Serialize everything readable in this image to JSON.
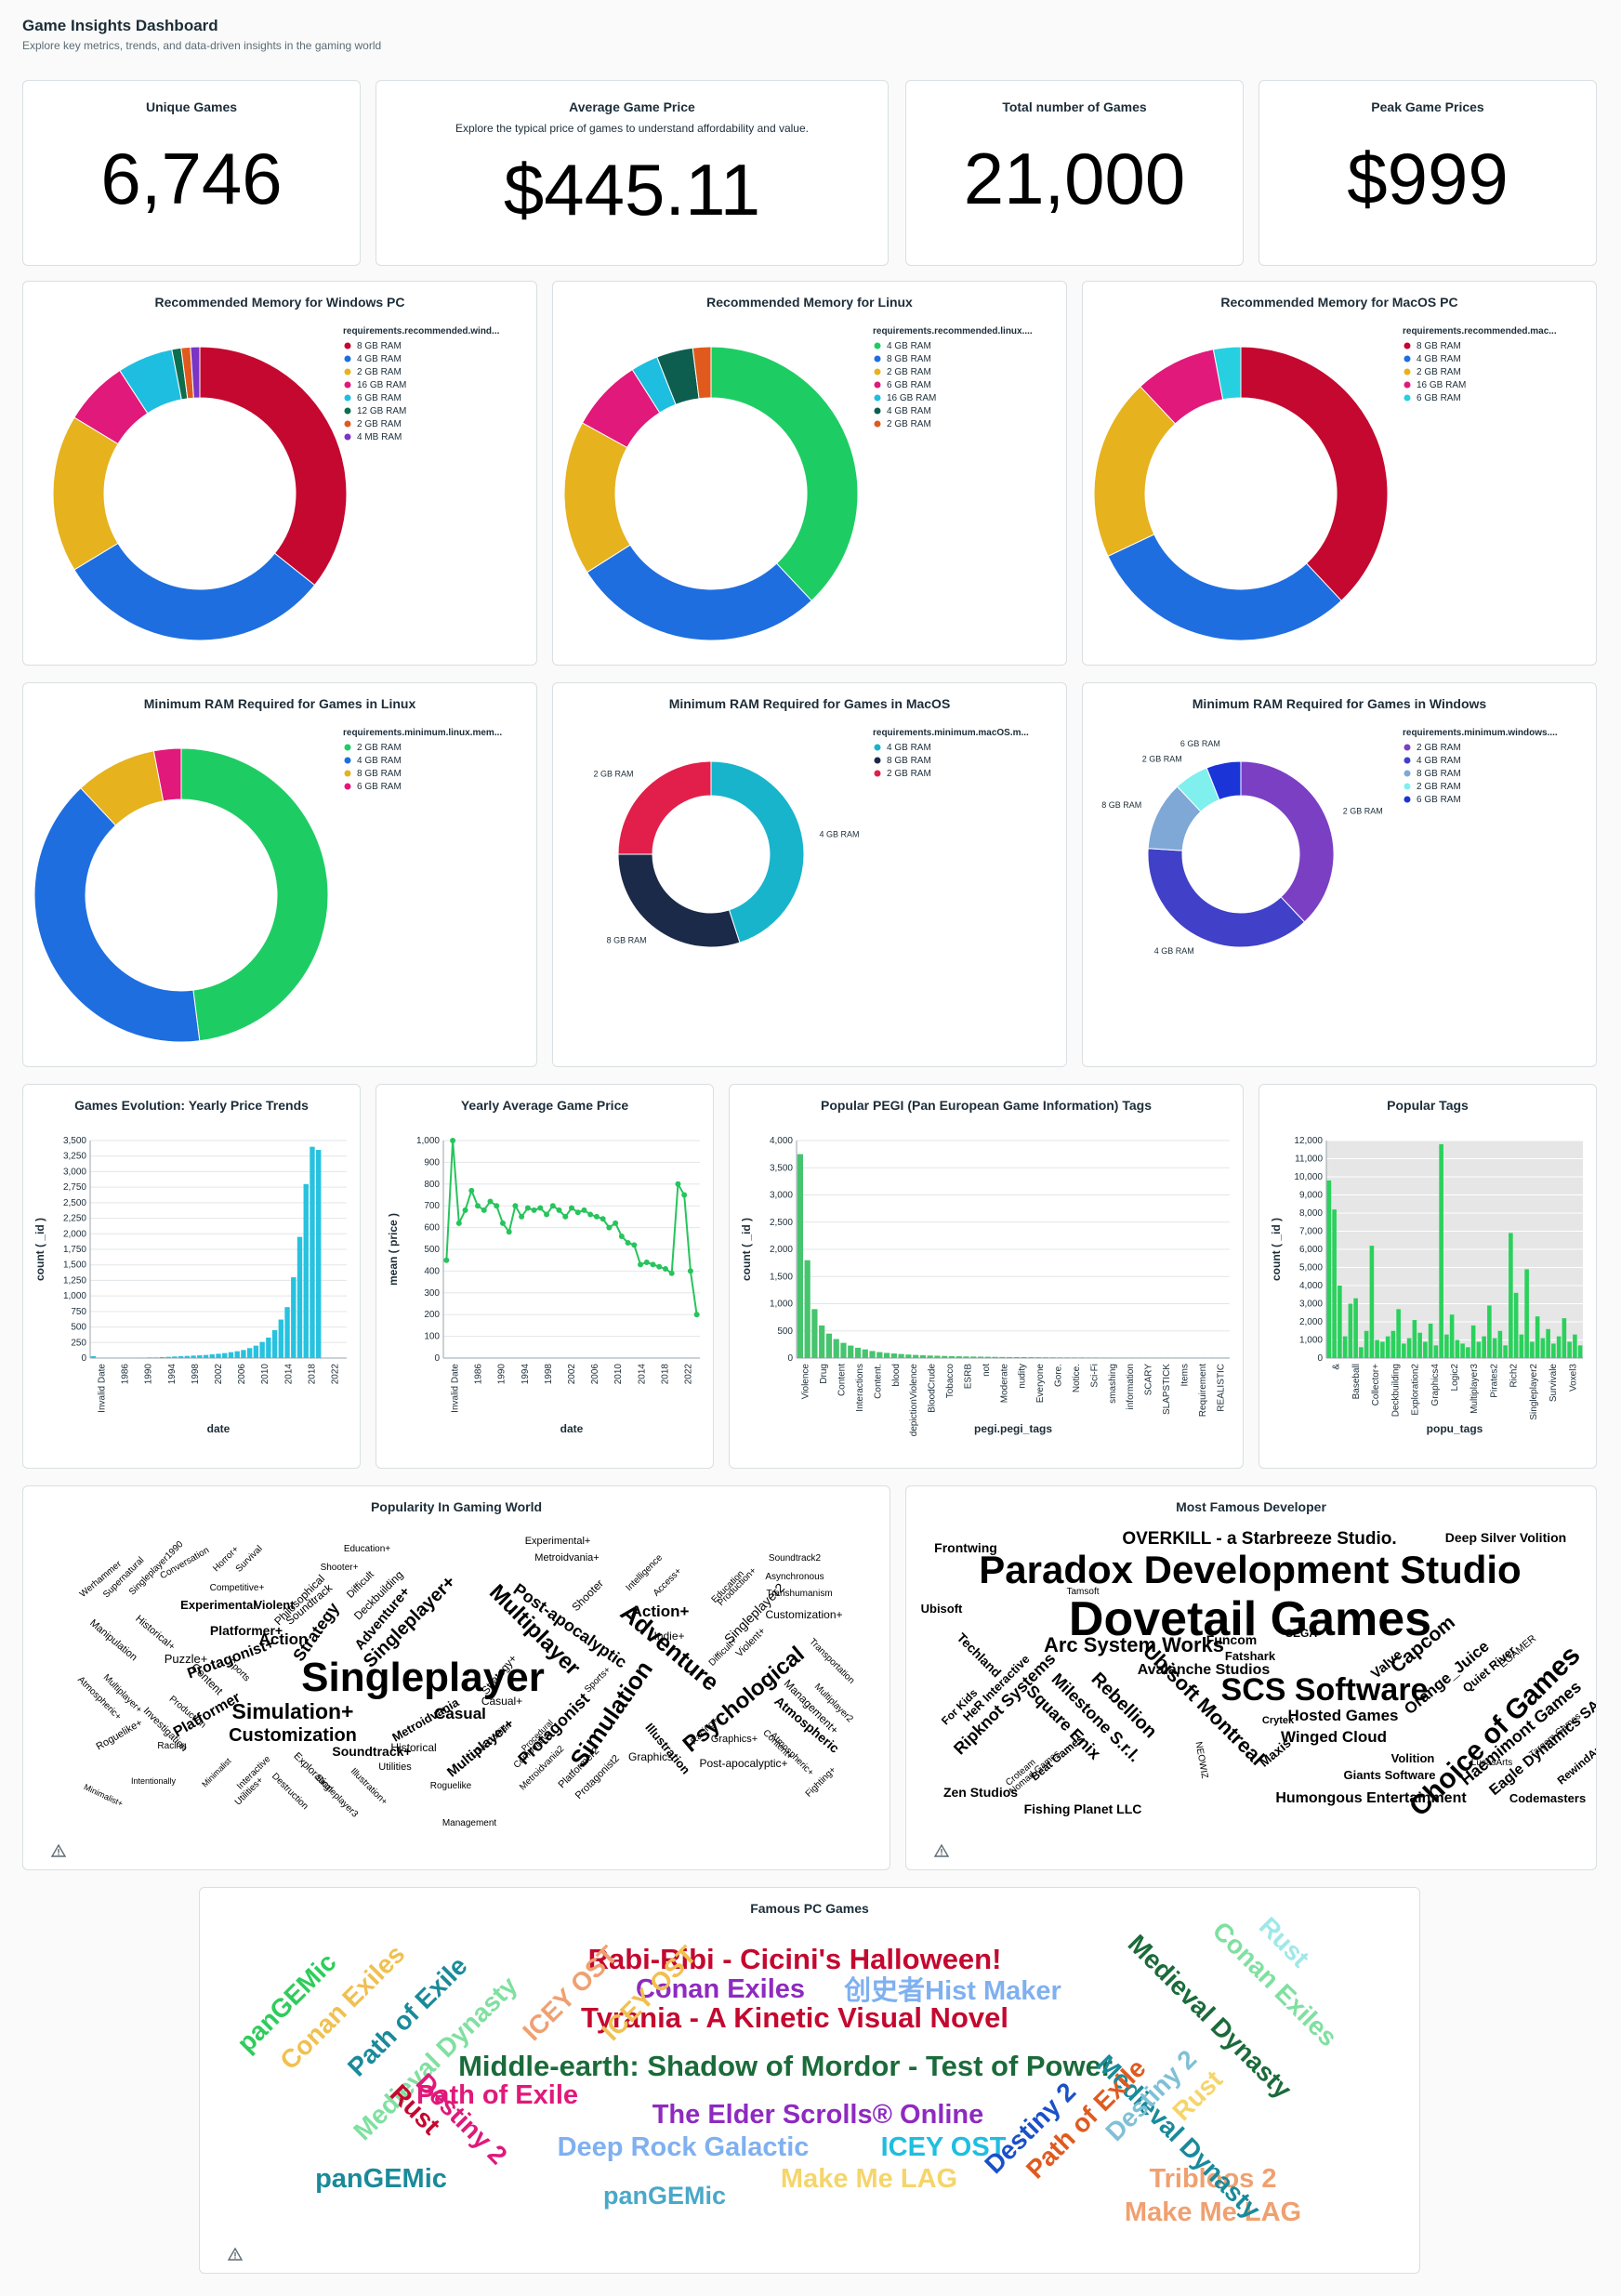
{
  "header": {
    "title": "Game Insights Dashboard",
    "subtitle": "Explore key metrics, trends, and data-driven insights in the gaming world"
  },
  "kpis": [
    {
      "title": "Unique Games",
      "subtitle": "",
      "value": "6,746"
    },
    {
      "title": "Average Game Price",
      "subtitle": "Explore the typical price of games to understand affordability and value.",
      "value": "$445.11"
    },
    {
      "title": "Total number of Games",
      "subtitle": "",
      "value": "21,000"
    },
    {
      "title": "Peak Game Prices",
      "subtitle": "",
      "value": "$999"
    }
  ],
  "chart_data": [
    {
      "id": "win_rec",
      "type": "pie",
      "donut": true,
      "title": "Recommended Memory for Windows PC",
      "legend_title": "requirements.recommended.wind...",
      "labels": [
        "8 GB RAM",
        "4 GB RAM",
        "2 GB RAM",
        "16 GB RAM",
        "6 GB RAM",
        "12 GB RAM",
        "2 GB RAM",
        "4 MB RAM"
      ],
      "values": [
        35,
        30,
        17,
        7,
        6,
        1,
        1,
        1
      ],
      "colors": [
        "#c4082f",
        "#1e6ee0",
        "#e6b21e",
        "#e0197a",
        "#1ebee0",
        "#0d6e4e",
        "#e05a1e",
        "#7a35c4"
      ]
    },
    {
      "id": "lin_rec",
      "type": "pie",
      "donut": true,
      "title": "Recommended Memory for Linux",
      "legend_title": "requirements.recommended.linux....",
      "labels": [
        "4 GB RAM",
        "8 GB RAM",
        "2 GB RAM",
        "6 GB RAM",
        "16 GB RAM",
        "4 GB RAM",
        "2 GB RAM"
      ],
      "values": [
        38,
        28,
        17,
        8,
        3,
        4,
        2
      ],
      "colors": [
        "#1ecc64",
        "#1e6ee0",
        "#e6b21e",
        "#e0197a",
        "#1ebee0",
        "#0d5e4e",
        "#e05a1e"
      ]
    },
    {
      "id": "mac_rec",
      "type": "pie",
      "donut": true,
      "title": "Recommended Memory for MacOS PC",
      "legend_title": "requirements.recommended.mac...",
      "labels": [
        "8 GB RAM",
        "4 GB RAM",
        "2 GB RAM",
        "16 GB RAM",
        "6 GB RAM"
      ],
      "values": [
        38,
        30,
        20,
        9,
        3
      ],
      "colors": [
        "#c4082f",
        "#1e6ee0",
        "#e6b21e",
        "#e0197a",
        "#27d0e0"
      ]
    },
    {
      "id": "lin_min",
      "type": "pie",
      "donut": true,
      "title": "Minimum RAM Required for Games in Linux",
      "legend_title": "requirements.minimum.linux.mem...",
      "labels": [
        "2 GB RAM",
        "4 GB RAM",
        "8 GB RAM",
        "6 GB RAM"
      ],
      "values": [
        48,
        40,
        9,
        3
      ],
      "colors": [
        "#1ecc64",
        "#1e6ee0",
        "#e6b21e",
        "#e0197a"
      ]
    },
    {
      "id": "mac_min",
      "type": "pie",
      "donut": true,
      "title": "Minimum RAM Required for Games in MacOS",
      "legend_title": "requirements.minimum.macOS.m...",
      "labels": [
        "4 GB RAM",
        "8 GB RAM",
        "2 GB RAM"
      ],
      "values": [
        45,
        30,
        25
      ],
      "colors": [
        "#18b4cc",
        "#1c2a4a",
        "#e21f4a"
      ]
    },
    {
      "id": "win_min",
      "type": "pie",
      "donut": true,
      "title": "Minimum RAM Required for Games in Windows",
      "legend_title": "requirements.minimum.windows....",
      "labels": [
        "2 GB RAM",
        "4 GB RAM",
        "8 GB RAM",
        "2 GB RAM",
        "6 GB RAM"
      ],
      "values": [
        38,
        38,
        12,
        6,
        6
      ],
      "colors": [
        "#7b3fc4",
        "#4040c8",
        "#7fa8d6",
        "#7ff0ee",
        "#1a34d8"
      ]
    },
    {
      "id": "yearly_count",
      "type": "bar",
      "title": "Games Evolution: Yearly Price Trends",
      "xlabel": "date",
      "ylabel": "count ( _id )",
      "ylim": [
        0,
        3500
      ],
      "yticks": [
        0,
        250,
        500,
        750,
        1000,
        1250,
        1500,
        1750,
        2000,
        2250,
        2500,
        2750,
        3000,
        3250,
        3500
      ],
      "xtick_labels": [
        "Invalid Date",
        "1986",
        "1990",
        "1994",
        "1998",
        "2002",
        "2006",
        "2010",
        "2014",
        "2018",
        "2022"
      ],
      "categories": [
        "Invalid Date",
        "1984",
        "1985",
        "1986",
        "1987",
        "1988",
        "1989",
        "1990",
        "1991",
        "1992",
        "1993",
        "1994",
        "1995",
        "1996",
        "1997",
        "1998",
        "1999",
        "2000",
        "2001",
        "2002",
        "2003",
        "2004",
        "2005",
        "2006",
        "2007",
        "2008",
        "2009",
        "2010",
        "2011",
        "2012",
        "2013",
        "2014",
        "2015",
        "2016",
        "2017",
        "2018",
        "2019",
        "2020",
        "2021",
        "2022",
        "2023"
      ],
      "values": [
        30,
        0,
        0,
        0,
        0,
        0,
        0,
        5,
        5,
        10,
        10,
        15,
        20,
        25,
        30,
        35,
        40,
        45,
        50,
        60,
        70,
        80,
        95,
        110,
        130,
        160,
        200,
        260,
        330,
        450,
        620,
        820,
        1300,
        1950,
        2800,
        3400,
        3350,
        0,
        0,
        0,
        0
      ],
      "color": "#27c2e0"
    },
    {
      "id": "yearly_price",
      "type": "line",
      "title": "Yearly Average Game Price",
      "xlabel": "date",
      "ylabel": "mean ( price )",
      "ylim": [
        0,
        1000
      ],
      "yticks": [
        0,
        100,
        200,
        300,
        400,
        500,
        600,
        700,
        800,
        900,
        1000
      ],
      "xtick_labels": [
        "Invalid Date",
        "1986",
        "1990",
        "1994",
        "1998",
        "2002",
        "2006",
        "2010",
        "2014",
        "2018",
        "2022"
      ],
      "x": [
        "Invalid Date",
        "1984",
        "1985",
        "1986",
        "1987",
        "1988",
        "1989",
        "1990",
        "1991",
        "1992",
        "1993",
        "1994",
        "1995",
        "1996",
        "1997",
        "1998",
        "1999",
        "2000",
        "2001",
        "2002",
        "2003",
        "2004",
        "2005",
        "2006",
        "2007",
        "2008",
        "2009",
        "2010",
        "2011",
        "2012",
        "2013",
        "2014",
        "2015",
        "2016",
        "2017",
        "2018",
        "2019",
        "2020",
        "2021",
        "2022",
        "2023"
      ],
      "values": [
        450,
        1000,
        620,
        680,
        770,
        700,
        680,
        720,
        700,
        620,
        580,
        700,
        650,
        690,
        680,
        690,
        660,
        700,
        680,
        650,
        690,
        670,
        680,
        660,
        650,
        640,
        600,
        620,
        560,
        530,
        520,
        430,
        440,
        430,
        420,
        410,
        390,
        800,
        750,
        400,
        200
      ],
      "color": "#27c45c"
    },
    {
      "id": "pegi_tags",
      "type": "bar",
      "title": "Popular PEGI (Pan European Game Information) Tags",
      "xlabel": "pegi.pegi_tags",
      "ylabel": "count ( _id )",
      "ylim": [
        0,
        4000
      ],
      "yticks": [
        0,
        500,
        1000,
        1500,
        2000,
        2500,
        3000,
        3500,
        4000
      ],
      "xtick_labels": [
        "Violence",
        "Drug",
        "Content",
        "Interactions",
        "Content.",
        "blood",
        "depictionViolence",
        "BloodCrude",
        "Tobacco",
        "ESRB",
        "not",
        "Moderate",
        "nudity",
        "Everyone",
        "Gore.",
        "Notice.",
        "Sci-Fi",
        "smashing",
        "information",
        "SCARY",
        "SLAPSTICK",
        "Items",
        "Requirement",
        "REALISTIC"
      ],
      "values": [
        3750,
        1800,
        900,
        600,
        450,
        350,
        280,
        230,
        190,
        160,
        130,
        110,
        95,
        85,
        75,
        65,
        58,
        52,
        47,
        43,
        39,
        36,
        33,
        30,
        28,
        26,
        24,
        22,
        20,
        19,
        18,
        17,
        16,
        15,
        14,
        13,
        12,
        12,
        11,
        11,
        10,
        10,
        9,
        9,
        8,
        8,
        8,
        7,
        7,
        7,
        6,
        6,
        6,
        6,
        5,
        5,
        5,
        5,
        5,
        5
      ],
      "color": "#46c46e"
    },
    {
      "id": "popular_tags",
      "type": "bar",
      "title": "Popular Tags",
      "xlabel": "popu_tags",
      "ylabel": "count ( _id )",
      "ylim": [
        0,
        12000
      ],
      "yticks": [
        0,
        1000,
        2000,
        3000,
        4000,
        5000,
        6000,
        7000,
        8000,
        9000,
        10000,
        11000,
        12000
      ],
      "xtick_labels": [
        "&",
        "Baseball",
        "Collector+",
        "Deckbuilding",
        "Exploration2",
        "Graphics4",
        "Logic2",
        "Multiplayer3",
        "Pirates2",
        "Rich2",
        "Singleplayer2",
        "Survivale",
        "Voxel3"
      ],
      "values": [
        9800,
        8200,
        4000,
        1200,
        3000,
        3300,
        600,
        1500,
        6200,
        1000,
        900,
        1200,
        1500,
        2700,
        800,
        1100,
        2100,
        1400,
        900,
        1900,
        700,
        11800,
        1300,
        2400,
        1000,
        800,
        600,
        1800,
        900,
        1200,
        2900,
        1100,
        1500,
        700,
        6900,
        3600,
        1300,
        4900,
        900,
        2300,
        1100,
        1600,
        800,
        1200,
        2200,
        900,
        1300,
        700
      ],
      "color": "#2ad15c",
      "plot_bg": "#e6e6e6"
    }
  ],
  "wordclouds": [
    {
      "id": "wc_popularity",
      "title": "Popularity In Gaming World"
    },
    {
      "id": "wc_developer",
      "title": "Most Famous Developer"
    },
    {
      "id": "wc_games",
      "title": "Famous PC Games"
    }
  ]
}
